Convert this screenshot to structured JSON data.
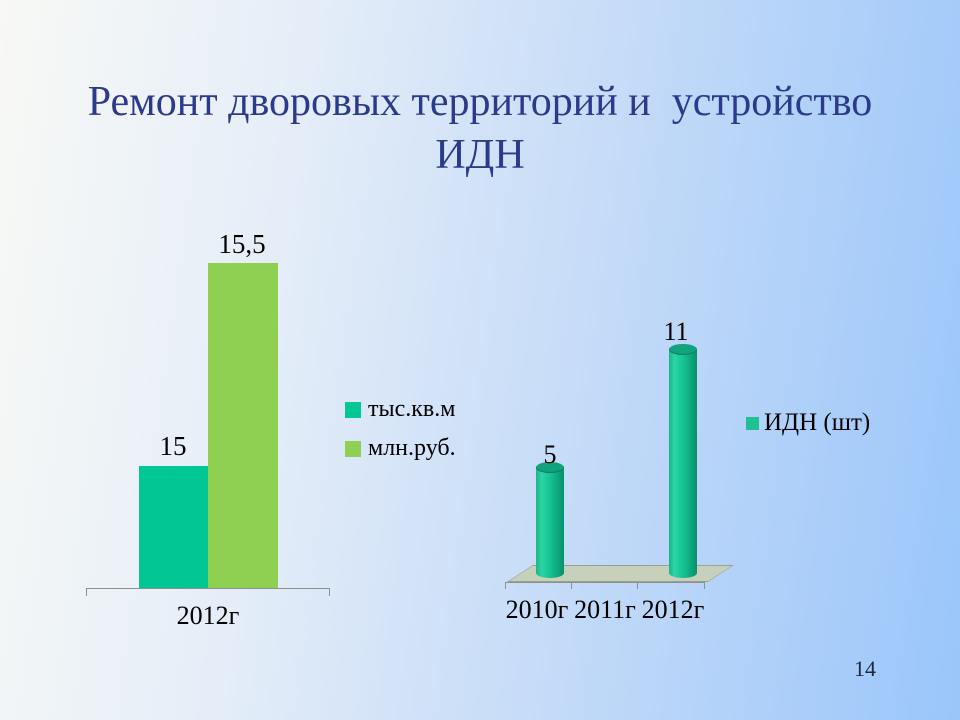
{
  "slide": {
    "title_line1": "Ремонт дворовых территорий и  устройство",
    "title_line2": "ИДН",
    "page_number": "14",
    "title_color": "#2c3a8c",
    "background_gradient": [
      "#f8f9f6",
      "#9ac6fa"
    ]
  },
  "chart_data": [
    {
      "type": "bar",
      "title": "",
      "categories": [
        "2012г"
      ],
      "series": [
        {
          "name": "тыс.кв.м",
          "values": [
            15
          ],
          "data_label": "15",
          "color": "#02c795"
        },
        {
          "name": "млн.руб.",
          "values": [
            15.5
          ],
          "data_label": "15,5",
          "color": "#8fd052"
        }
      ],
      "legend_position": "right",
      "grid": false,
      "axis_note": "only x-axis line visible; bar heights imply non-zero baseline (~14.7)"
    },
    {
      "type": "bar",
      "subtype": "3d-cylinder",
      "categories": [
        "2010г",
        "2011г",
        "2012г"
      ],
      "series": [
        {
          "name": "ИДН (шт)",
          "values": [
            5,
            0,
            11
          ],
          "data_labels": [
            "5",
            "",
            "11"
          ],
          "color": "#17c593"
        }
      ],
      "legend_position": "right",
      "grid": false,
      "floor_color": "#c6d0ba"
    }
  ]
}
